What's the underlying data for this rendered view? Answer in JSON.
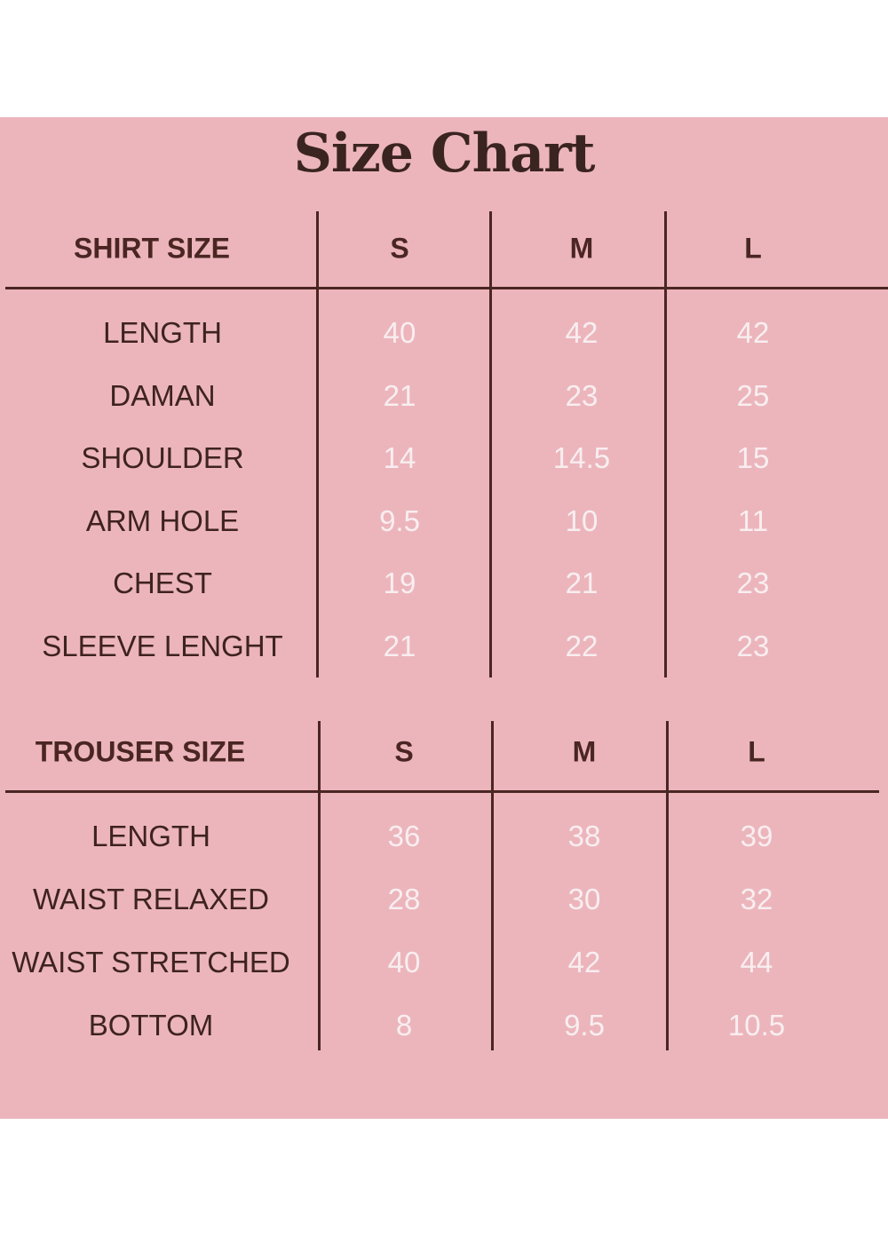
{
  "title": "Size Chart",
  "colors": {
    "background": "#ecb5bc",
    "text": "#3e2320",
    "values": "#f8eef0"
  },
  "shirt": {
    "header": "SHIRT SIZE",
    "sizes": [
      "S",
      "M",
      "L"
    ],
    "rows": [
      {
        "label": "LENGTH",
        "values": [
          "40",
          "42",
          "42"
        ]
      },
      {
        "label": "DAMAN",
        "values": [
          "21",
          "23",
          "25"
        ]
      },
      {
        "label": "SHOULDER",
        "values": [
          "14",
          "14.5",
          "15"
        ]
      },
      {
        "label": "ARM HOLE",
        "values": [
          "9.5",
          "10",
          "11"
        ]
      },
      {
        "label": "CHEST",
        "values": [
          "19",
          "21",
          "23"
        ]
      },
      {
        "label": "SLEEVE LENGHT",
        "values": [
          "21",
          "22",
          "23"
        ]
      }
    ]
  },
  "trouser": {
    "header": "TROUSER SIZE",
    "sizes": [
      "S",
      "M",
      "L"
    ],
    "rows": [
      {
        "label": "LENGTH",
        "values": [
          "36",
          "38",
          "39"
        ]
      },
      {
        "label": "WAIST RELAXED",
        "values": [
          "28",
          "30",
          "32"
        ]
      },
      {
        "label": "WAIST STRETCHED",
        "values": [
          "40",
          "42",
          "44"
        ]
      },
      {
        "label": "BOTTOM",
        "values": [
          "8",
          "9.5",
          "10.5"
        ]
      }
    ]
  }
}
